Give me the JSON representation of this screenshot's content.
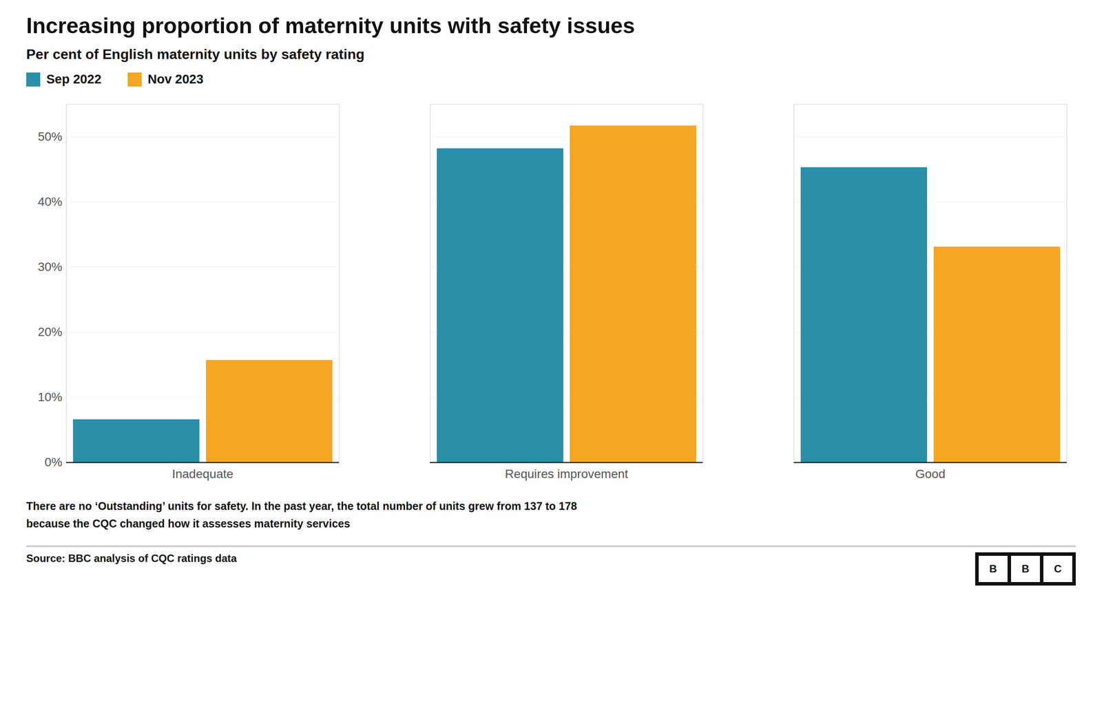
{
  "chart_data": {
    "type": "bar",
    "title": "Increasing proportion of maternity units with safety issues",
    "subtitle": "Per cent of English maternity units by safety rating",
    "categories": [
      "Inadequate",
      "Requires improvement",
      "Good"
    ],
    "series": [
      {
        "name": "Sep 2022",
        "color": "#2a8fa8",
        "values": [
          6.6,
          48.2,
          45.3
        ]
      },
      {
        "name": "Nov 2023",
        "color": "#f5a623",
        "values": [
          15.7,
          51.7,
          33.1
        ]
      }
    ],
    "ylim": [
      0,
      55
    ],
    "yticks": [
      {
        "value": 0,
        "label": "0%"
      },
      {
        "value": 10,
        "label": "10%"
      },
      {
        "value": 20,
        "label": "20%"
      },
      {
        "value": 30,
        "label": "30%"
      },
      {
        "value": 40,
        "label": "40%"
      },
      {
        "value": 50,
        "label": "50%"
      }
    ],
    "grid": true,
    "legend": "top left",
    "footnote": "There are no ‘Outstanding’ units for safety. In the past year, the total number of units grew from 137 to 178\nbecause the CQC changed how it assesses maternity services",
    "source": "Source: BBC analysis of CQC ratings data",
    "logo": "BBC"
  }
}
